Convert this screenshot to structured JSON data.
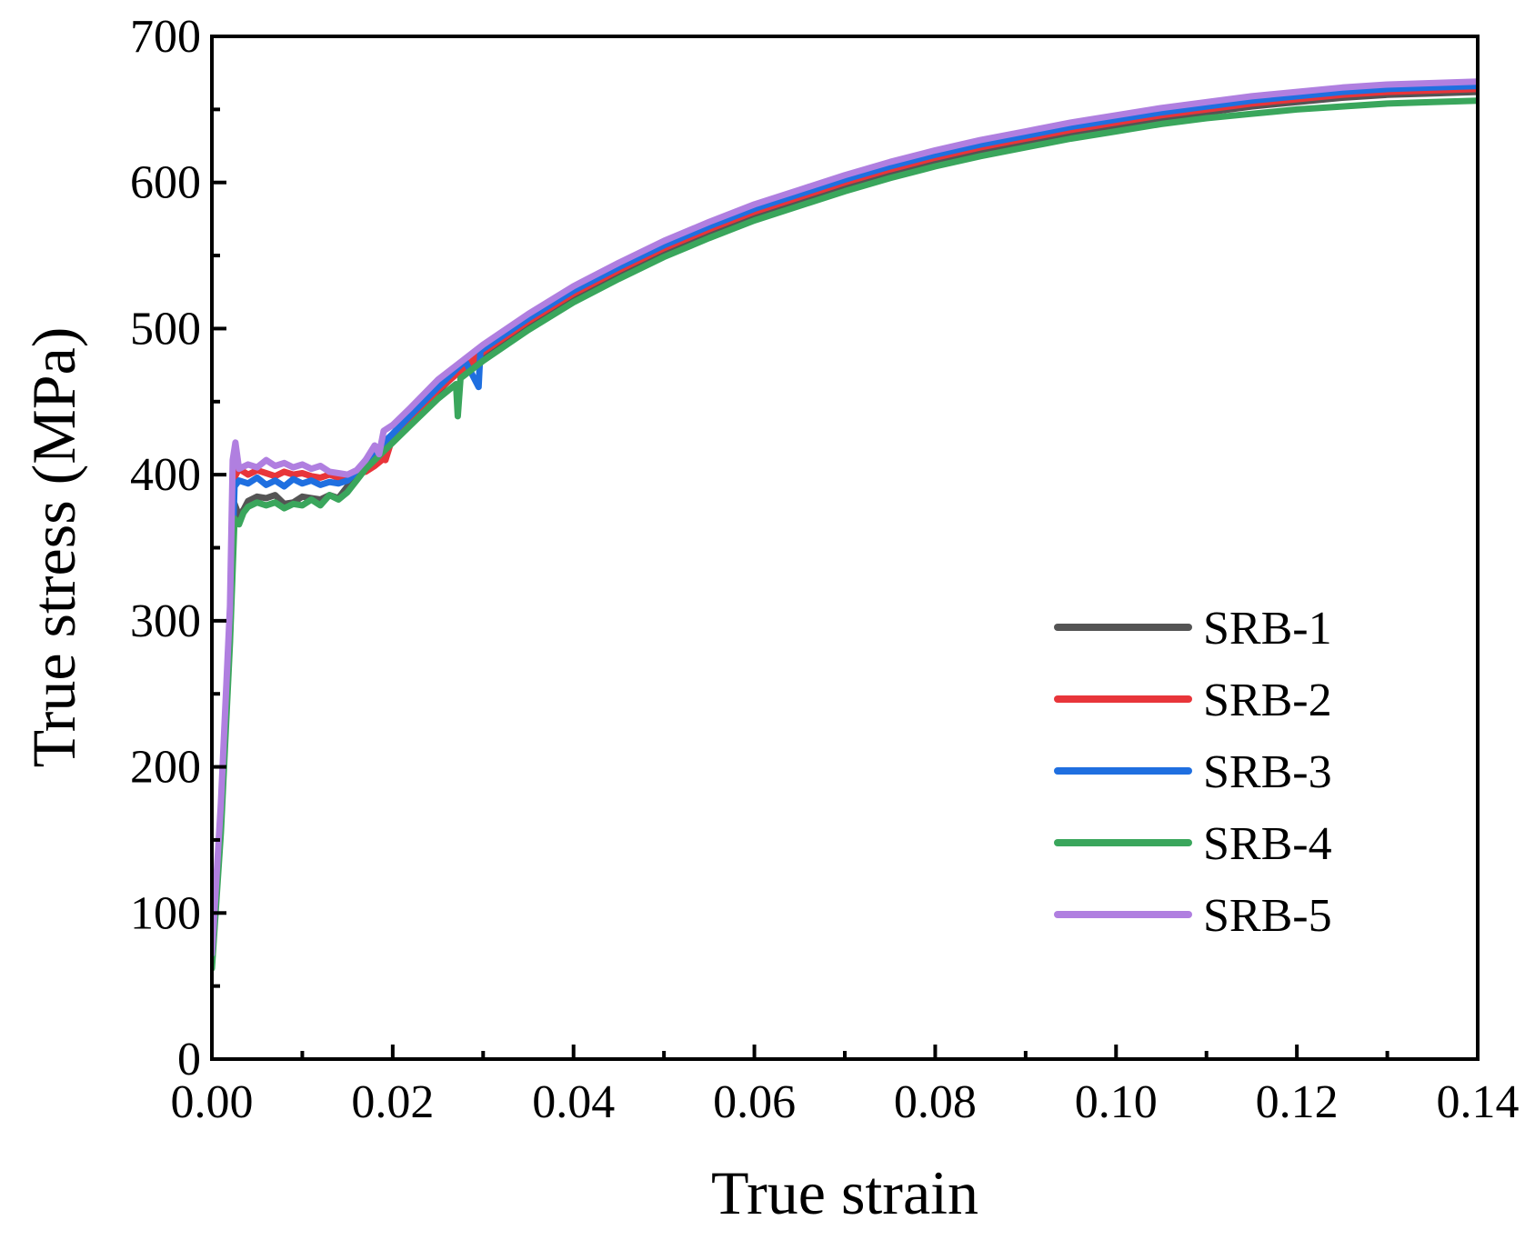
{
  "chart_data": {
    "type": "line",
    "title": "",
    "xlabel": "True strain",
    "ylabel": "True stress (MPa)",
    "xlim": [
      0,
      0.14
    ],
    "ylim": [
      0,
      700
    ],
    "xticks": [
      0.0,
      0.02,
      0.04,
      0.06,
      0.08,
      0.1,
      0.12,
      0.14
    ],
    "xtick_labels": [
      "0.00",
      "0.02",
      "0.04",
      "0.06",
      "0.08",
      "0.10",
      "0.12",
      "0.14"
    ],
    "yticks": [
      0,
      100,
      200,
      300,
      400,
      500,
      600,
      700
    ],
    "ytick_labels": [
      "0",
      "100",
      "200",
      "300",
      "400",
      "500",
      "600",
      "700"
    ],
    "grid": false,
    "legend_position": "lower-right",
    "series": [
      {
        "name": "SRB-1",
        "color": "#545454",
        "points": [
          [
            0,
            65
          ],
          [
            0.001,
            160
          ],
          [
            0.002,
            290
          ],
          [
            0.0025,
            380
          ],
          [
            0.003,
            372
          ],
          [
            0.0035,
            376
          ],
          [
            0.004,
            382
          ],
          [
            0.005,
            385
          ],
          [
            0.006,
            384
          ],
          [
            0.007,
            386
          ],
          [
            0.008,
            380
          ],
          [
            0.009,
            381
          ],
          [
            0.01,
            385
          ],
          [
            0.011,
            384
          ],
          [
            0.012,
            383
          ],
          [
            0.013,
            386
          ],
          [
            0.014,
            384
          ],
          [
            0.015,
            392
          ],
          [
            0.016,
            398
          ],
          [
            0.017,
            405
          ],
          [
            0.018,
            410
          ],
          [
            0.019,
            418
          ],
          [
            0.02,
            426
          ],
          [
            0.022,
            438
          ],
          [
            0.025,
            457
          ],
          [
            0.027,
            469
          ],
          [
            0.03,
            482
          ],
          [
            0.035,
            503
          ],
          [
            0.04,
            522
          ],
          [
            0.045,
            538
          ],
          [
            0.05,
            553
          ],
          [
            0.055,
            566
          ],
          [
            0.06,
            578
          ],
          [
            0.065,
            588
          ],
          [
            0.07,
            598
          ],
          [
            0.075,
            607
          ],
          [
            0.08,
            615
          ],
          [
            0.085,
            622
          ],
          [
            0.09,
            628
          ],
          [
            0.095,
            634
          ],
          [
            0.1,
            639
          ],
          [
            0.105,
            644
          ],
          [
            0.11,
            648
          ],
          [
            0.115,
            652
          ],
          [
            0.12,
            655
          ],
          [
            0.125,
            658
          ],
          [
            0.13,
            660
          ],
          [
            0.135,
            661
          ],
          [
            0.14,
            662
          ]
        ]
      },
      {
        "name": "SRB-2",
        "color": "#e8353a",
        "points": [
          [
            0,
            70
          ],
          [
            0.001,
            170
          ],
          [
            0.002,
            300
          ],
          [
            0.0025,
            398
          ],
          [
            0.003,
            404
          ],
          [
            0.004,
            400
          ],
          [
            0.005,
            403
          ],
          [
            0.006,
            401
          ],
          [
            0.007,
            399
          ],
          [
            0.008,
            402
          ],
          [
            0.009,
            400
          ],
          [
            0.01,
            401
          ],
          [
            0.011,
            399
          ],
          [
            0.012,
            398
          ],
          [
            0.013,
            400
          ],
          [
            0.014,
            398
          ],
          [
            0.015,
            399
          ],
          [
            0.016,
            401
          ],
          [
            0.017,
            402
          ],
          [
            0.018,
            406
          ],
          [
            0.019,
            411
          ],
          [
            0.0192,
            410
          ],
          [
            0.02,
            426
          ],
          [
            0.022,
            439
          ],
          [
            0.025,
            458
          ],
          [
            0.03,
            484
          ],
          [
            0.035,
            505
          ],
          [
            0.04,
            524
          ],
          [
            0.045,
            540
          ],
          [
            0.05,
            555
          ],
          [
            0.055,
            568
          ],
          [
            0.06,
            580
          ],
          [
            0.065,
            590
          ],
          [
            0.07,
            600
          ],
          [
            0.075,
            609
          ],
          [
            0.08,
            617
          ],
          [
            0.085,
            624
          ],
          [
            0.09,
            630
          ],
          [
            0.095,
            636
          ],
          [
            0.1,
            641
          ],
          [
            0.105,
            646
          ],
          [
            0.11,
            650
          ],
          [
            0.115,
            654
          ],
          [
            0.12,
            657
          ],
          [
            0.125,
            660
          ],
          [
            0.13,
            662
          ],
          [
            0.135,
            663
          ],
          [
            0.14,
            664
          ]
        ]
      },
      {
        "name": "SRB-3",
        "color": "#1f6fe0",
        "points": [
          [
            0,
            68
          ],
          [
            0.001,
            165
          ],
          [
            0.002,
            295
          ],
          [
            0.0025,
            392
          ],
          [
            0.003,
            396
          ],
          [
            0.004,
            394
          ],
          [
            0.005,
            398
          ],
          [
            0.006,
            393
          ],
          [
            0.007,
            396
          ],
          [
            0.008,
            392
          ],
          [
            0.009,
            397
          ],
          [
            0.01,
            394
          ],
          [
            0.011,
            396
          ],
          [
            0.012,
            393
          ],
          [
            0.013,
            395
          ],
          [
            0.014,
            394
          ],
          [
            0.015,
            396
          ],
          [
            0.016,
            402
          ],
          [
            0.017,
            410
          ],
          [
            0.018,
            416
          ],
          [
            0.019,
            422
          ],
          [
            0.02,
            428
          ],
          [
            0.022,
            441
          ],
          [
            0.025,
            460
          ],
          [
            0.028,
            478
          ],
          [
            0.0295,
            460
          ],
          [
            0.0297,
            485
          ],
          [
            0.03,
            486
          ],
          [
            0.035,
            507
          ],
          [
            0.04,
            526
          ],
          [
            0.045,
            542
          ],
          [
            0.05,
            557
          ],
          [
            0.055,
            570
          ],
          [
            0.06,
            582
          ],
          [
            0.065,
            592
          ],
          [
            0.07,
            602
          ],
          [
            0.075,
            611
          ],
          [
            0.08,
            619
          ],
          [
            0.085,
            626
          ],
          [
            0.09,
            632
          ],
          [
            0.095,
            638
          ],
          [
            0.1,
            643
          ],
          [
            0.105,
            648
          ],
          [
            0.11,
            652
          ],
          [
            0.115,
            656
          ],
          [
            0.12,
            659
          ],
          [
            0.125,
            662
          ],
          [
            0.13,
            664
          ],
          [
            0.135,
            665
          ],
          [
            0.14,
            666
          ]
        ]
      },
      {
        "name": "SRB-4",
        "color": "#3aa65c",
        "points": [
          [
            0,
            62
          ],
          [
            0.001,
            155
          ],
          [
            0.002,
            285
          ],
          [
            0.0025,
            370
          ],
          [
            0.003,
            366
          ],
          [
            0.0035,
            374
          ],
          [
            0.004,
            378
          ],
          [
            0.005,
            381
          ],
          [
            0.006,
            379
          ],
          [
            0.007,
            381
          ],
          [
            0.008,
            377
          ],
          [
            0.009,
            380
          ],
          [
            0.01,
            379
          ],
          [
            0.011,
            383
          ],
          [
            0.012,
            379
          ],
          [
            0.013,
            386
          ],
          [
            0.014,
            383
          ],
          [
            0.015,
            388
          ],
          [
            0.016,
            396
          ],
          [
            0.017,
            404
          ],
          [
            0.018,
            410
          ],
          [
            0.019,
            416
          ],
          [
            0.02,
            422
          ],
          [
            0.022,
            434
          ],
          [
            0.025,
            452
          ],
          [
            0.027,
            462
          ],
          [
            0.0272,
            440
          ],
          [
            0.0275,
            466
          ],
          [
            0.03,
            478
          ],
          [
            0.035,
            499
          ],
          [
            0.04,
            518
          ],
          [
            0.045,
            534
          ],
          [
            0.05,
            549
          ],
          [
            0.055,
            562
          ],
          [
            0.06,
            574
          ],
          [
            0.065,
            584
          ],
          [
            0.07,
            594
          ],
          [
            0.075,
            603
          ],
          [
            0.08,
            611
          ],
          [
            0.085,
            618
          ],
          [
            0.09,
            624
          ],
          [
            0.095,
            630
          ],
          [
            0.1,
            635
          ],
          [
            0.105,
            640
          ],
          [
            0.11,
            644
          ],
          [
            0.115,
            647
          ],
          [
            0.12,
            650
          ],
          [
            0.125,
            652
          ],
          [
            0.13,
            654
          ],
          [
            0.135,
            655
          ],
          [
            0.14,
            656
          ]
        ]
      },
      {
        "name": "SRB-5",
        "color": "#b07fe0",
        "points": [
          [
            0,
            72
          ],
          [
            0.001,
            175
          ],
          [
            0.002,
            310
          ],
          [
            0.0023,
            410
          ],
          [
            0.0026,
            422
          ],
          [
            0.003,
            404
          ],
          [
            0.004,
            407
          ],
          [
            0.005,
            405
          ],
          [
            0.006,
            410
          ],
          [
            0.007,
            406
          ],
          [
            0.008,
            408
          ],
          [
            0.009,
            405
          ],
          [
            0.01,
            407
          ],
          [
            0.011,
            404
          ],
          [
            0.012,
            406
          ],
          [
            0.013,
            402
          ],
          [
            0.014,
            401
          ],
          [
            0.015,
            400
          ],
          [
            0.016,
            403
          ],
          [
            0.017,
            410
          ],
          [
            0.018,
            420
          ],
          [
            0.0185,
            414
          ],
          [
            0.019,
            430
          ],
          [
            0.02,
            434
          ],
          [
            0.022,
            446
          ],
          [
            0.025,
            465
          ],
          [
            0.03,
            489
          ],
          [
            0.035,
            510
          ],
          [
            0.04,
            529
          ],
          [
            0.045,
            545
          ],
          [
            0.05,
            560
          ],
          [
            0.055,
            573
          ],
          [
            0.06,
            585
          ],
          [
            0.065,
            595
          ],
          [
            0.07,
            605
          ],
          [
            0.075,
            614
          ],
          [
            0.08,
            622
          ],
          [
            0.085,
            629
          ],
          [
            0.09,
            635
          ],
          [
            0.095,
            641
          ],
          [
            0.1,
            646
          ],
          [
            0.105,
            651
          ],
          [
            0.11,
            655
          ],
          [
            0.115,
            659
          ],
          [
            0.12,
            662
          ],
          [
            0.125,
            665
          ],
          [
            0.13,
            667
          ],
          [
            0.135,
            668
          ],
          [
            0.14,
            669
          ]
        ]
      }
    ]
  }
}
